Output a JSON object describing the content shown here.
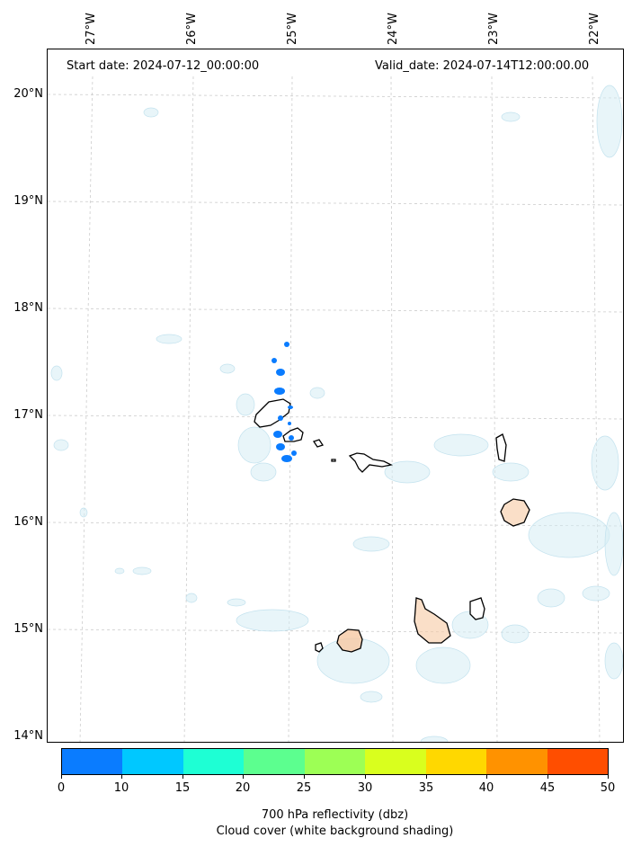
{
  "header": {
    "start_date": "Start date: 2024-07-12_00:00:00",
    "valid_date": "Valid_date: 2024-07-14T12:00:00.00"
  },
  "axes": {
    "lon_labels": [
      "27°W",
      "26°W",
      "25°W",
      "24°W",
      "23°W",
      "22°W"
    ],
    "lat_labels": [
      "20°N",
      "19°N",
      "18°N",
      "17°N",
      "16°N",
      "15°N",
      "14°N"
    ]
  },
  "colorbar": {
    "ticks": [
      "0",
      "10",
      "15",
      "20",
      "25",
      "30",
      "35",
      "40",
      "45",
      "50"
    ],
    "colors": [
      "#0a7cff",
      "#00c8ff",
      "#1effd4",
      "#5cff8f",
      "#9dff55",
      "#d9ff1e",
      "#ffd800",
      "#ff9200",
      "#ff4e00"
    ],
    "title_line1": "700 hPa reflectivity (dbz)",
    "title_line2": "Cloud cover (white background shading)"
  },
  "map": {
    "land_fill": "#f6c9a4",
    "cloud_color": "#cde8f2",
    "reflectivity_color": "#0a7cff",
    "gridline_color": "#c8c8c8"
  }
}
